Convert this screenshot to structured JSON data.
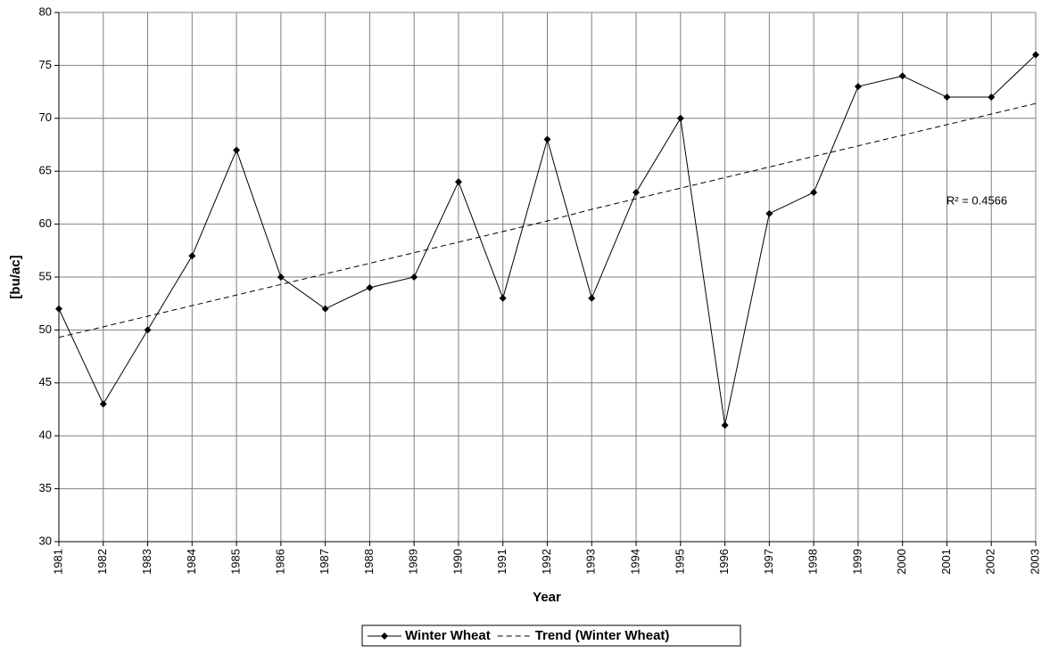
{
  "chart_data": {
    "type": "line",
    "x_label": "Year",
    "y_label": "[bu/ac]",
    "annotation": "R² = 0.4566",
    "categories": [
      "1981",
      "1982",
      "1983",
      "1984",
      "1985",
      "1986",
      "1987",
      "1988",
      "1989",
      "1990",
      "1991",
      "1992",
      "1993",
      "1994",
      "1995",
      "1996",
      "1997",
      "1998",
      "1999",
      "2000",
      "2001",
      "2002",
      "2003"
    ],
    "series": [
      {
        "name": "Winter Wheat",
        "color": "#000000",
        "style": "solid",
        "marker": "diamond",
        "values": [
          52,
          43,
          50,
          57,
          67,
          55,
          52,
          54,
          55,
          64,
          53,
          68,
          53,
          63,
          70,
          41,
          61,
          63,
          73,
          74,
          72,
          72,
          76
        ]
      },
      {
        "name": "Trend (Winter Wheat)",
        "color": "#000000",
        "style": "dashed",
        "values": [
          49.3,
          50.3,
          51.3,
          52.3,
          53.3,
          54.3,
          55.3,
          56.3,
          57.3,
          58.3,
          59.3,
          60.3,
          61.4,
          62.4,
          63.4,
          64.4,
          65.4,
          66.4,
          67.4,
          68.4,
          69.4,
          70.4,
          71.4
        ]
      }
    ],
    "ylim": [
      30,
      80
    ],
    "yticks": [
      30,
      35,
      40,
      45,
      50,
      55,
      60,
      65,
      70,
      75,
      80
    ],
    "grid": true,
    "legend": "bottom"
  }
}
